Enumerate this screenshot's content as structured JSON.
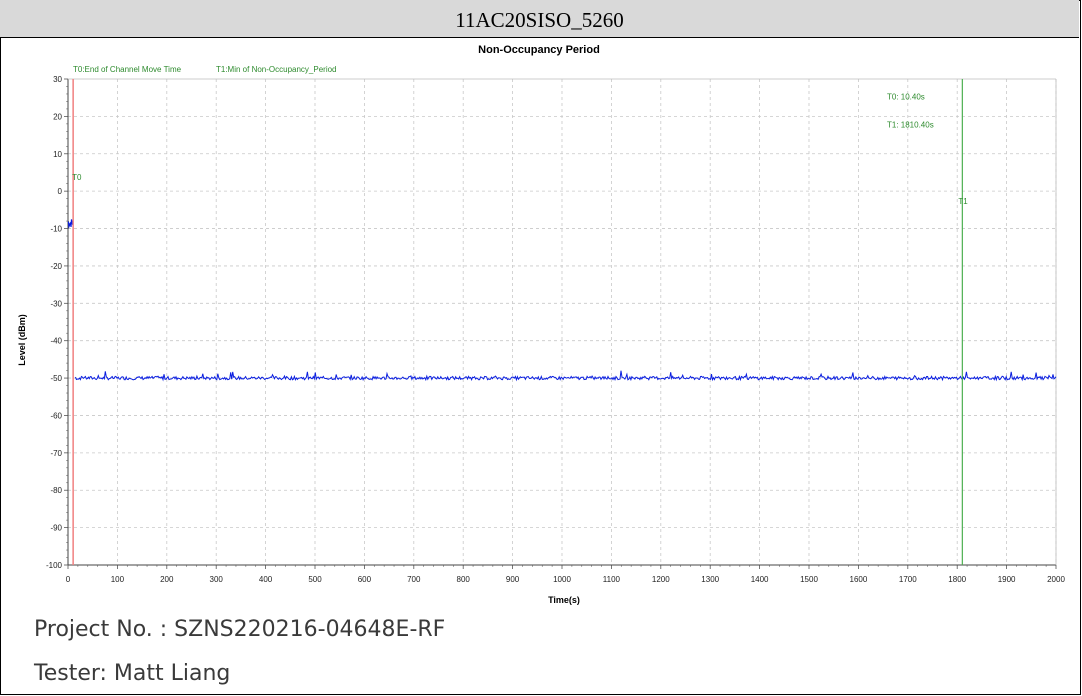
{
  "header": {
    "title": "11AC20SISO_5260"
  },
  "footer": {
    "project": "Project No. : SZNS220216-04648E-RF",
    "tester": "Tester: Matt Liang"
  },
  "colors": {
    "signal": "#0a1ee0",
    "t0_marker": "#f08080",
    "t1_marker": "#4caf50",
    "marker_text": "#2e8b2e",
    "grid": "#c8c8c8"
  },
  "chart_data": {
    "type": "line",
    "title": "Non-Occupancy Period",
    "xlabel": "Time(s)",
    "ylabel": "Level (dBm)",
    "xlim": [
      0,
      2000
    ],
    "ylim": [
      -100,
      30
    ],
    "xticks": [
      0,
      100,
      200,
      300,
      400,
      500,
      600,
      700,
      800,
      900,
      1000,
      1100,
      1200,
      1300,
      1400,
      1500,
      1600,
      1700,
      1800,
      1900,
      2000
    ],
    "yticks": [
      30,
      20,
      10,
      0,
      -10,
      -20,
      -30,
      -40,
      -50,
      -60,
      -70,
      -80,
      -90,
      -100
    ],
    "grid": true,
    "legend": [
      "T0:End of Channel Move Time",
      "T1:Min of Non-Occupancy_Period"
    ],
    "markers": [
      {
        "label": "T0",
        "x": 10.4,
        "readout": "T0: 10.40s"
      },
      {
        "label": "T1",
        "x": 1810.4,
        "readout": "T1: 1810.40s"
      }
    ],
    "series": [
      {
        "segment": "pre-T0",
        "x_range": [
          0,
          10
        ],
        "level": -8.5
      },
      {
        "segment": "post-T0",
        "x_range": [
          15,
          2000
        ],
        "level": -50
      }
    ]
  }
}
